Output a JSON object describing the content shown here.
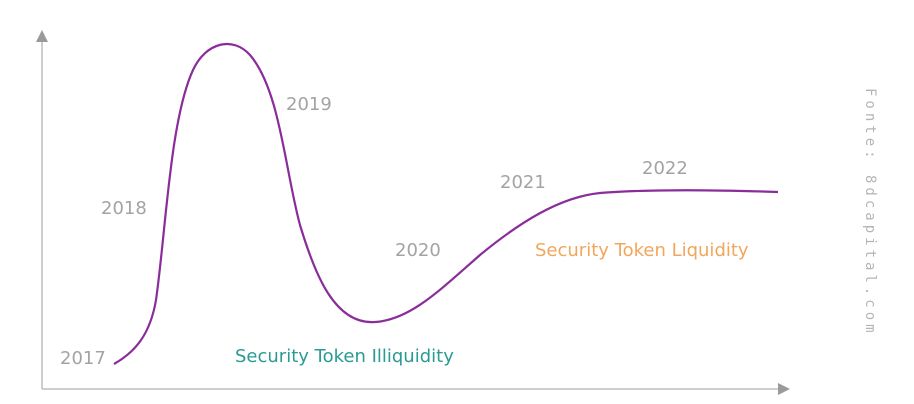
{
  "chart_data": {
    "type": "line",
    "title": "",
    "xlabel": "",
    "ylabel": "",
    "x": [
      "2017",
      "2018",
      "2019",
      "2020",
      "2021",
      "2022"
    ],
    "series": [
      {
        "values": [
          0.05,
          0.5,
          0.9,
          0.12,
          0.55,
          0.63
        ]
      }
    ],
    "annotations": [
      {
        "text": "Security Token Illiquidity",
        "color": "#2a9a94"
      },
      {
        "text": "Security Token Liquidity",
        "color": "#f2a65a"
      }
    ],
    "grid": false,
    "legend": "none",
    "line_color": "#8a2d9a",
    "axis_color": "#9a9a9a"
  },
  "source": "Fonte: 8dcapital.com"
}
